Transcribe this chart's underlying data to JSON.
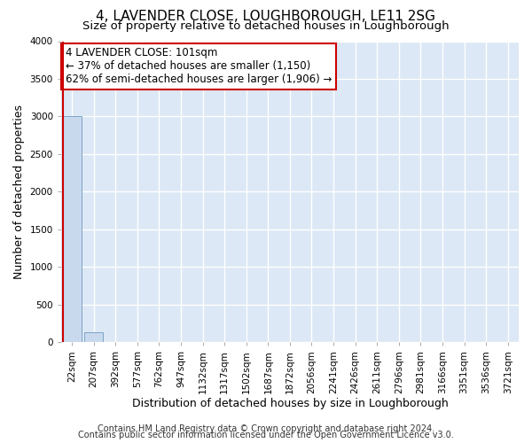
{
  "title": "4, LAVENDER CLOSE, LOUGHBOROUGH, LE11 2SG",
  "subtitle": "Size of property relative to detached houses in Loughborough",
  "xlabel": "Distribution of detached houses by size in Loughborough",
  "ylabel": "Number of detached properties",
  "bar_labels": [
    "22sqm",
    "207sqm",
    "392sqm",
    "577sqm",
    "762sqm",
    "947sqm",
    "1132sqm",
    "1317sqm",
    "1502sqm",
    "1687sqm",
    "1872sqm",
    "2056sqm",
    "2241sqm",
    "2426sqm",
    "2611sqm",
    "2796sqm",
    "2981sqm",
    "3166sqm",
    "3351sqm",
    "3536sqm",
    "3721sqm"
  ],
  "bar_values": [
    3000,
    130,
    0,
    0,
    0,
    0,
    0,
    0,
    0,
    0,
    0,
    0,
    0,
    0,
    0,
    0,
    0,
    0,
    0,
    0,
    0
  ],
  "bar_color": "#c9d9ed",
  "bar_edge_color": "#7ca4c8",
  "ylim": [
    0,
    4000
  ],
  "yticks": [
    0,
    500,
    1000,
    1500,
    2000,
    2500,
    3000,
    3500,
    4000
  ],
  "vline_color": "#cc0000",
  "vline_x_index": 0,
  "annotation_title": "4 LAVENDER CLOSE: 101sqm",
  "annotation_line1": "← 37% of detached houses are smaller (1,150)",
  "annotation_line2": "62% of semi-detached houses are larger (1,906) →",
  "annotation_box_color": "#ffffff",
  "annotation_box_edge": "#cc0000",
  "footer1": "Contains HM Land Registry data © Crown copyright and database right 2024.",
  "footer2": "Contains public sector information licensed under the Open Government Licence v3.0.",
  "background_color": "#ffffff",
  "plot_bg_color": "#dce8f5",
  "grid_color": "#ffffff",
  "title_fontsize": 11,
  "subtitle_fontsize": 9.5,
  "axis_label_fontsize": 9,
  "tick_fontsize": 7.5,
  "annotation_fontsize": 8.5,
  "footer_fontsize": 7
}
